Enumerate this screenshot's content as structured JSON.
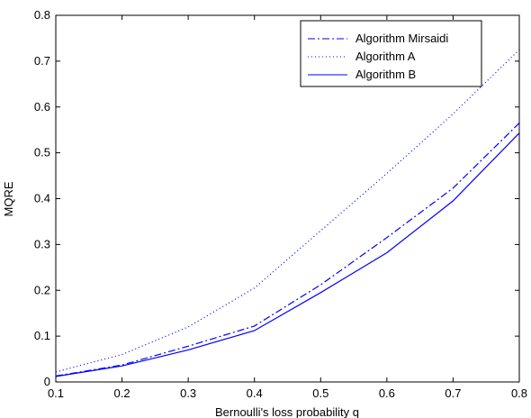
{
  "chart_data": {
    "type": "line",
    "title": "",
    "xlabel": "Bernoulli's loss probability q",
    "ylabel": "MQRE",
    "xlim": [
      0.1,
      0.8
    ],
    "ylim": [
      0,
      0.8
    ],
    "xticks": [
      "0.1",
      "0.2",
      "0.3",
      "0.4",
      "0.5",
      "0.6",
      "0.7",
      "0.8"
    ],
    "yticks": [
      "0",
      "0.1",
      "0.2",
      "0.3",
      "0.4",
      "0.5",
      "0.6",
      "0.7",
      "0.8"
    ],
    "grid": false,
    "legend_position": "top-right",
    "x": [
      0.1,
      0.2,
      0.3,
      0.4,
      0.5,
      0.6,
      0.7,
      0.8
    ],
    "series": [
      {
        "name": "Algorithm Mirsaidi",
        "values": [
          0.013,
          0.037,
          0.078,
          0.122,
          0.212,
          0.315,
          0.423,
          0.565
        ],
        "color": "#0000ff",
        "dash": "dashdot"
      },
      {
        "name": "Algorithm A",
        "values": [
          0.022,
          0.06,
          0.12,
          0.205,
          0.33,
          0.455,
          0.585,
          0.725
        ],
        "color": "#0000ff",
        "dash": "dotted"
      },
      {
        "name": "Algorithm B",
        "values": [
          0.012,
          0.035,
          0.07,
          0.112,
          0.195,
          0.282,
          0.395,
          0.543
        ],
        "color": "#0000ff",
        "dash": "solid"
      }
    ]
  }
}
